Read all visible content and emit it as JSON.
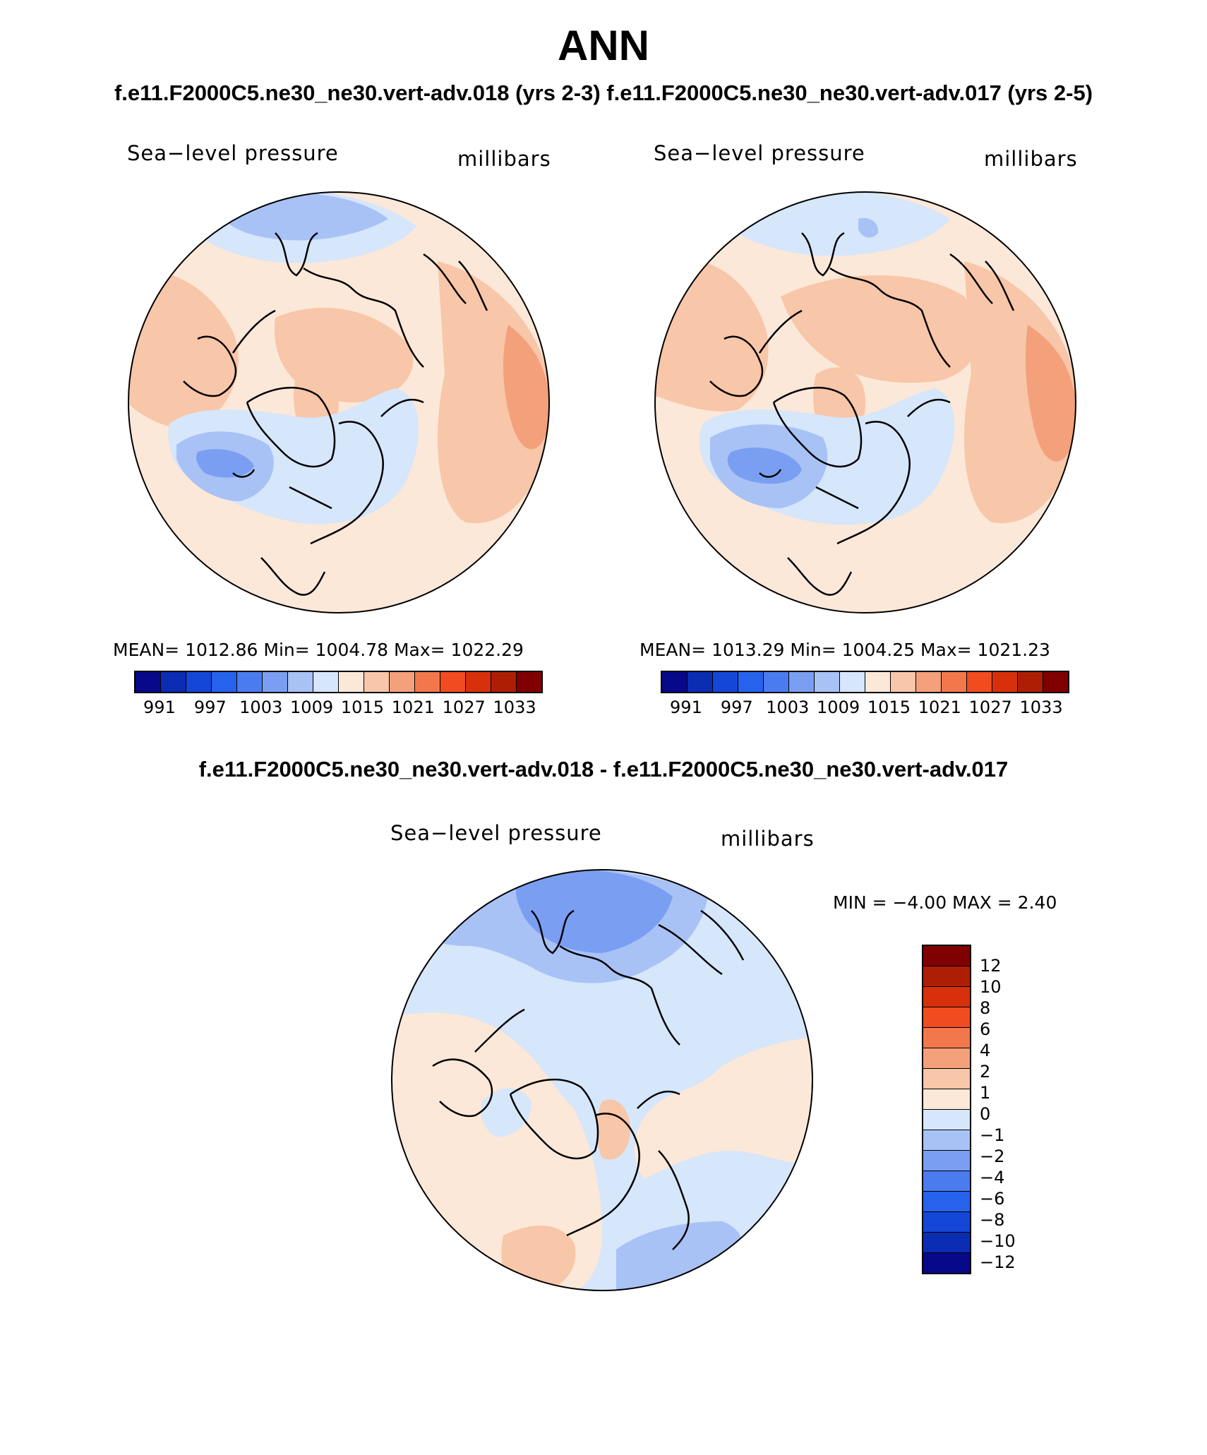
{
  "title": "ANN",
  "subtitle_top": "f.e11.F2000C5.ne30_ne30.vert-adv.018 (yrs 2-3) f.e11.F2000C5.ne30_ne30.vert-adv.017 (yrs 2-5)",
  "subtitle_diff": "f.e11.F2000C5.ne30_ne30.vert-adv.018 - f.e11.F2000C5.ne30_ne30.vert-adv.017",
  "panels": [
    {
      "variable": "Sea−level pressure",
      "units": "millibars",
      "stats": "MEAN=  1012.86   Min=  1004.78   Max=  1022.29"
    },
    {
      "variable": "Sea−level pressure",
      "units": "millibars",
      "stats": "MEAN=  1013.29   Min=  1004.25   Max=  1021.23"
    },
    {
      "variable": "Sea−level pressure",
      "units": "millibars",
      "stats": "MIN =   −4.00  MAX =     2.40"
    }
  ],
  "colorbar_abs": {
    "colors": [
      "#08088a",
      "#0a2db4",
      "#1446d8",
      "#2662ec",
      "#4a7cf0",
      "#7a9ff2",
      "#a8c2f6",
      "#d6e6fb",
      "#fce8d8",
      "#f8c6a8",
      "#f4a07a",
      "#f2784c",
      "#f04c20",
      "#d8300a",
      "#ae1e04",
      "#800000"
    ],
    "labels": [
      "991",
      "997",
      "1003",
      "1009",
      "1015",
      "1021",
      "1027",
      "1033"
    ]
  },
  "colorbar_diff": {
    "colors": [
      "#800000",
      "#ae1e04",
      "#d8300a",
      "#f04c20",
      "#f2784c",
      "#f4a07a",
      "#f8c6a8",
      "#fce8d8",
      "#d6e6fb",
      "#a8c2f6",
      "#7a9ff2",
      "#4a7cf0",
      "#2662ec",
      "#1446d8",
      "#0a2db4",
      "#08088a"
    ],
    "labels": [
      "12",
      "10",
      "8",
      "6",
      "4",
      "2",
      "1",
      "0",
      "−1",
      "−2",
      "−4",
      "−6",
      "−8",
      "−10",
      "−12"
    ]
  },
  "map_colors": {
    "ocean_base": "#fce8d8",
    "warm1": "#f8c6a8",
    "warm2": "#f4a07a",
    "cool1": "#d6e6fb",
    "cool2": "#a8c2f6",
    "cool3": "#7a9ff2",
    "edge": "#000000"
  }
}
